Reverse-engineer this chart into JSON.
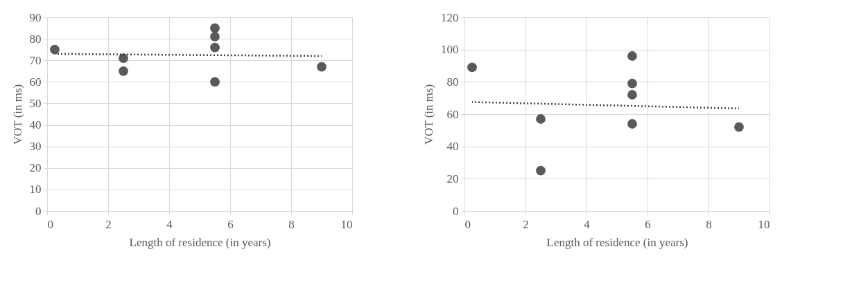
{
  "chart_data": [
    {
      "type": "scatter",
      "xlabel": "Length of residence (in years)",
      "ylabel": "VOT (in ms)",
      "xlim": [
        0,
        10
      ],
      "xticks": [
        0,
        2,
        4,
        6,
        8,
        10
      ],
      "ylim": [
        0,
        90
      ],
      "yticks": [
        0,
        10,
        20,
        30,
        40,
        50,
        60,
        70,
        80,
        90
      ],
      "grid": true,
      "series": [
        {
          "color": "#595959",
          "marker": "circle",
          "x": [
            0.25,
            2.5,
            2.5,
            5.5,
            5.5,
            5.5,
            5.5,
            9
          ],
          "values": [
            75,
            71,
            65,
            85,
            81,
            76,
            60,
            67
          ]
        },
        {
          "type": "line",
          "color": "#404040",
          "marker": "none",
          "line_style": "dotted",
          "x": [
            0.25,
            9
          ],
          "values": [
            73,
            72
          ]
        }
      ]
    },
    {
      "type": "scatter",
      "xlabel": "Length of residence (in years)",
      "ylabel": "VOT (in ms)",
      "xlim": [
        0,
        10
      ],
      "xticks": [
        0,
        2,
        4,
        6,
        8,
        10
      ],
      "ylim": [
        0,
        120
      ],
      "yticks": [
        0,
        20,
        40,
        60,
        80,
        100,
        120
      ],
      "grid": true,
      "series": [
        {
          "color": "#595959",
          "marker": "circle",
          "x": [
            0.25,
            2.5,
            2.5,
            5.5,
            5.5,
            5.5,
            5.5,
            9
          ],
          "values": [
            89,
            57,
            25,
            96,
            79,
            72,
            54,
            52
          ]
        },
        {
          "type": "line",
          "color": "#404040",
          "marker": "none",
          "line_style": "dotted",
          "x": [
            0.25,
            9
          ],
          "values": [
            67.5,
            63.5
          ]
        }
      ]
    }
  ]
}
